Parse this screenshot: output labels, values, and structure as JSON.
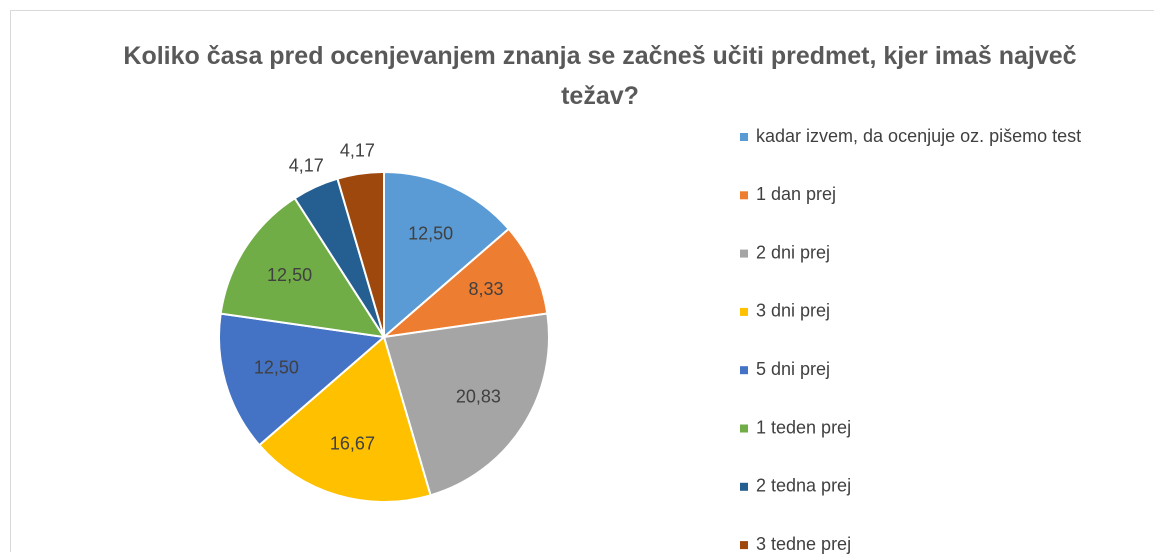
{
  "chart_data": {
    "type": "pie",
    "title": "Koliko časa pred ocenjevanjem znanja se začneš učiti predmet, kjer imaš največ težav?",
    "categories": [
      "kadar izvem, da ocenjuje oz. pišemo test",
      "1 dan prej",
      "2 dni prej",
      "3 dni prej",
      "5 dni prej",
      "1 teden prej",
      "2 tedna prej",
      "3 tedne prej"
    ],
    "values": [
      12.5,
      8.33,
      20.83,
      16.67,
      12.5,
      12.5,
      4.17,
      4.17
    ],
    "value_labels": [
      "12,50",
      "8,33",
      "20,83",
      "16,67",
      "12,50",
      "12,50",
      "4,17",
      "4,17"
    ],
    "colors": [
      "#5b9bd5",
      "#ed7d31",
      "#a5a5a5",
      "#ffc000",
      "#4472c4",
      "#70ad47",
      "#255e91",
      "#9e480e"
    ],
    "legend": "right"
  }
}
